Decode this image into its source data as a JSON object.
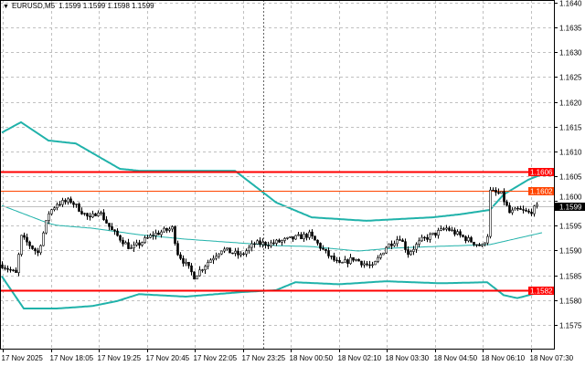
{
  "header": {
    "menu_icon": "triangle-down-icon",
    "symbol": "EURUSD,M5",
    "ohlc": "1.1599 1.1599 1.1598 1.1599"
  },
  "colors": {
    "background": "#ffffff",
    "candles": "#000000",
    "bollinger": "#20b2aa",
    "support_resistance": "#ff0000",
    "level_1602": "#ff4500",
    "bid_line": "#c0c0c0",
    "grid": "#c0c0c0"
  },
  "chart_data": {
    "type": "candlestick",
    "timeframe": "M5",
    "ylim": [
      1.1572,
      1.1641
    ],
    "grid": true,
    "y_ticks": [
      "1.1640",
      "1.1635",
      "1.1630",
      "1.1625",
      "1.1620",
      "1.1615",
      "1.1610",
      "1.1605",
      "1.1600",
      "1.1595",
      "1.1590",
      "1.1585",
      "1.1580",
      "1.1575"
    ],
    "x_ticks": [
      "17 Nov 2025",
      "17 Nov 18:05",
      "17 Nov 19:25",
      "17 Nov 20:45",
      "17 Nov 22:05",
      "17 Nov 23:25",
      "18 Nov 00:50",
      "18 Nov 02:10",
      "18 Nov 03:30",
      "18 Nov 04:50",
      "18 Nov 06:10",
      "18 Nov 07:30"
    ],
    "close_path": [
      [
        0,
        1.15871
      ],
      [
        5,
        1.15853
      ],
      [
        7,
        1.15927
      ],
      [
        13,
        1.15895
      ],
      [
        17,
        1.15976
      ],
      [
        20,
        1.15995
      ],
      [
        25,
        1.16
      ],
      [
        32,
        1.15963
      ],
      [
        35,
        1.15982
      ],
      [
        40,
        1.1594
      ],
      [
        47,
        1.15903
      ],
      [
        55,
        1.15932
      ],
      [
        62,
        1.15945
      ],
      [
        64,
        1.15895
      ],
      [
        70,
        1.15848
      ],
      [
        75,
        1.15877
      ],
      [
        80,
        1.15903
      ],
      [
        87,
        1.1589
      ],
      [
        92,
        1.15914
      ],
      [
        98,
        1.15914
      ],
      [
        112,
        1.15932
      ],
      [
        118,
        1.15895
      ],
      [
        123,
        1.15871
      ],
      [
        128,
        1.15884
      ],
      [
        135,
        1.15866
      ],
      [
        140,
        1.15908
      ],
      [
        145,
        1.15927
      ],
      [
        148,
        1.15895
      ],
      [
        153,
        1.15921
      ],
      [
        162,
        1.15945
      ],
      [
        168,
        1.15927
      ],
      [
        175,
        1.15908
      ],
      [
        177,
        1.15932
      ],
      [
        178,
        1.16019
      ],
      [
        182,
        1.16013
      ],
      [
        185,
        1.15976
      ],
      [
        188,
        1.15982
      ],
      [
        192,
        1.15976
      ],
      [
        195,
        1.15988
      ]
    ],
    "bollinger_upper": [
      [
        0,
        1.16138
      ],
      [
        7,
        1.16159
      ],
      [
        17,
        1.16122
      ],
      [
        27,
        1.16116
      ],
      [
        43,
        1.16065
      ],
      [
        50,
        1.16061
      ],
      [
        67,
        1.16061
      ],
      [
        85,
        1.16061
      ],
      [
        97,
        1.1601
      ],
      [
        100,
        1.15997
      ],
      [
        113,
        1.15967
      ],
      [
        133,
        1.1596
      ],
      [
        143,
        1.15963
      ],
      [
        157,
        1.15967
      ],
      [
        167,
        1.15973
      ],
      [
        178,
        1.15982
      ],
      [
        183,
        1.16013
      ],
      [
        192,
        1.16043
      ],
      [
        197,
        1.16054
      ]
    ],
    "bollinger_middle": [
      [
        0,
        1.15991
      ],
      [
        17,
        1.15955
      ],
      [
        20,
        1.15951
      ],
      [
        33,
        1.15945
      ],
      [
        50,
        1.15932
      ],
      [
        67,
        1.15923
      ],
      [
        90,
        1.15914
      ],
      [
        100,
        1.1591
      ],
      [
        113,
        1.15908
      ],
      [
        130,
        1.15899
      ],
      [
        143,
        1.15905
      ],
      [
        157,
        1.15908
      ],
      [
        178,
        1.15912
      ],
      [
        197,
        1.15936
      ]
    ],
    "bollinger_lower": [
      [
        0,
        1.15848
      ],
      [
        8,
        1.15783
      ],
      [
        20,
        1.15783
      ],
      [
        33,
        1.15788
      ],
      [
        42,
        1.15798
      ],
      [
        50,
        1.15812
      ],
      [
        67,
        1.15807
      ],
      [
        87,
        1.15816
      ],
      [
        100,
        1.1582
      ],
      [
        107,
        1.15836
      ],
      [
        123,
        1.15832
      ],
      [
        140,
        1.15838
      ],
      [
        160,
        1.15834
      ],
      [
        177,
        1.15836
      ],
      [
        183,
        1.1581
      ],
      [
        188,
        1.15804
      ],
      [
        197,
        1.15817
      ]
    ],
    "horizontal_levels": [
      {
        "price": "1.1606",
        "color": "#ff0000",
        "style": "thick"
      },
      {
        "price": "1.1602",
        "color": "#ff4500",
        "style": "thin"
      },
      {
        "price": "1.1582",
        "color": "#ff0000",
        "style": "thick"
      }
    ],
    "bid": "1.1599",
    "period_separator": "17 Nov 23:25"
  }
}
